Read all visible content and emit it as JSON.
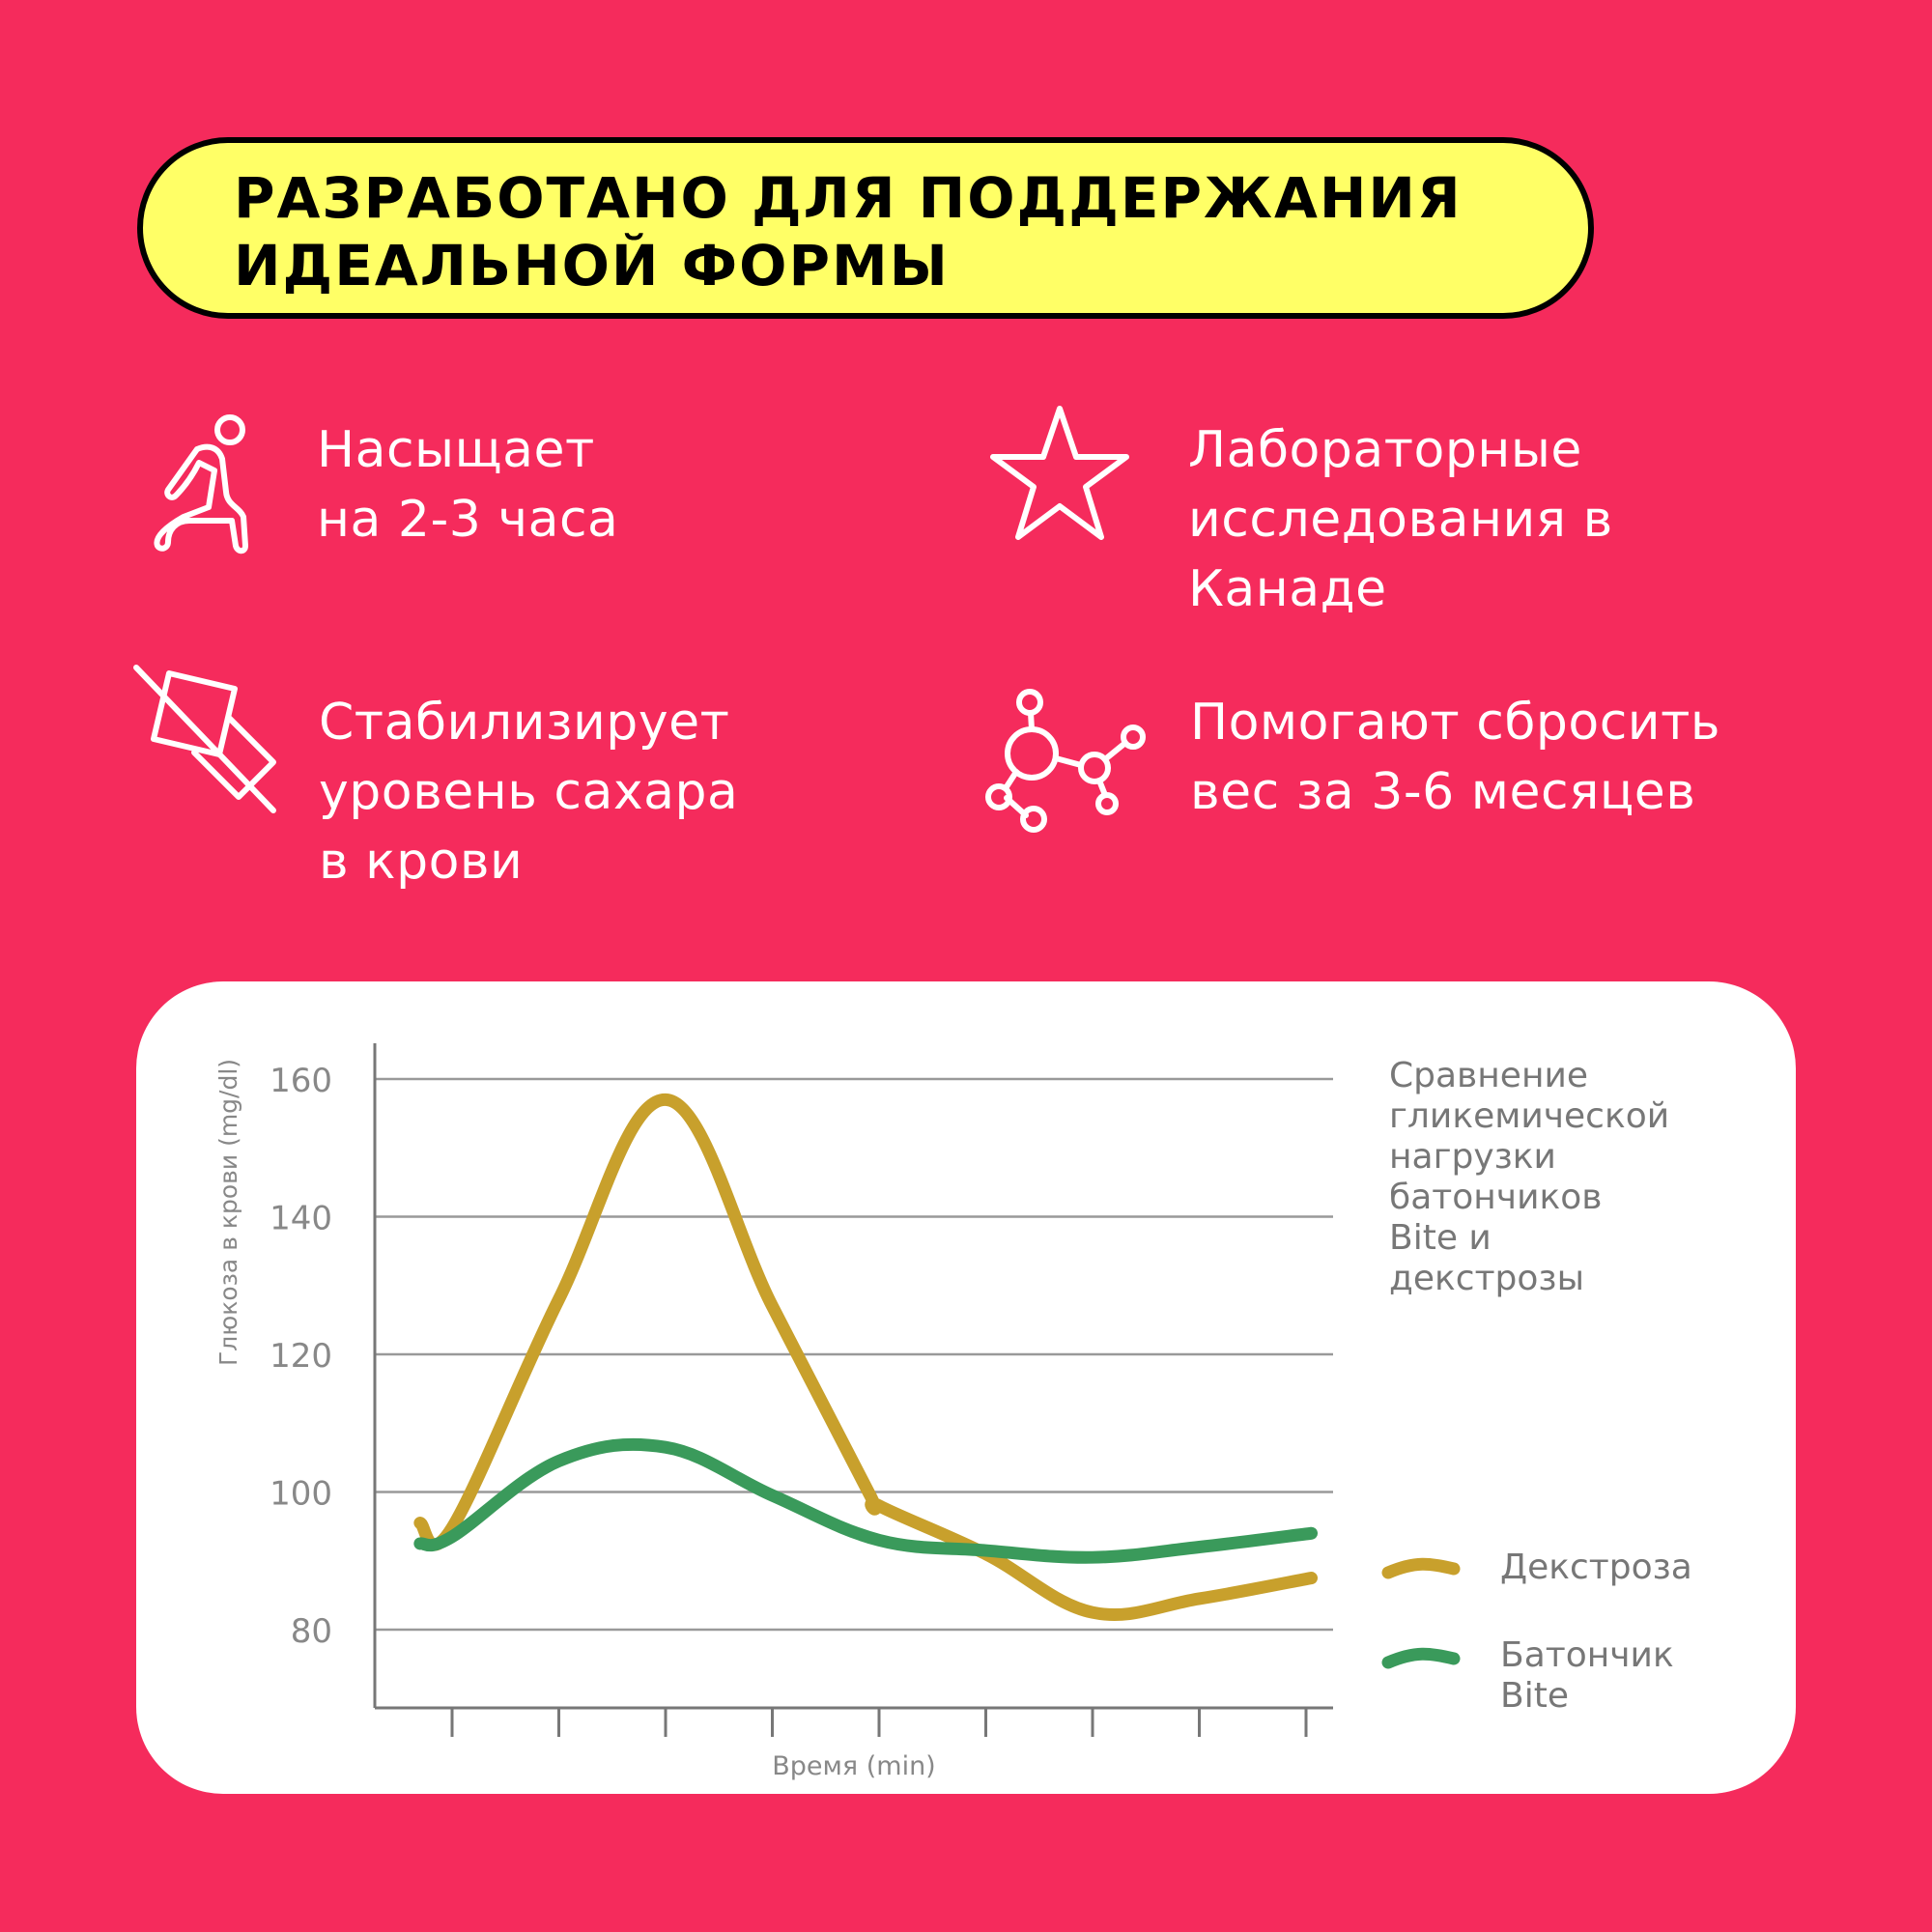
{
  "headline": {
    "line1": "РАЗРАБОТАНО ДЛЯ ПОДДЕРЖАНИЯ",
    "line2": "ИДЕАЛЬНОЙ ФОРМЫ"
  },
  "features": [
    {
      "icon": "stretching-person-icon",
      "lines": [
        "Насыщает",
        "на 2-3 часа"
      ]
    },
    {
      "icon": "star-icon",
      "lines": [
        "Лабораторные",
        "исследования в",
        "Канаде"
      ]
    },
    {
      "icon": "no-sugar-icon",
      "lines": [
        "Стабилизирует",
        "уровень сахара",
        "в крови"
      ]
    },
    {
      "icon": "molecule-icon",
      "lines": [
        "Помогают сбросить",
        "вес за 3-6 месяцев"
      ]
    }
  ],
  "colors": {
    "background": "#F52B5C",
    "headline_bg": "#FFFF66",
    "dextrose": "#C8A02C",
    "bite": "#3A9A5B"
  },
  "chart_note": [
    "Сравнение",
    "гликемической",
    "нагрузки",
    "батончиков",
    "Bite и",
    "декстрозы"
  ],
  "chart_data": {
    "type": "line",
    "xlabel": "Время (min)",
    "ylabel": "Глюкоза в крови (mg/dl)",
    "ylim": [
      68,
      166
    ],
    "yticks": [
      80,
      100,
      120,
      140,
      160
    ],
    "grid": true,
    "legend_position": "right",
    "series": [
      {
        "name": "Декстроза",
        "color": "#C8A02C",
        "x": [
          -0.3,
          0,
          1,
          2,
          3,
          3.9,
          4,
          5,
          6,
          7,
          8.05
        ],
        "y": [
          95.5,
          94.8,
          128,
          157,
          127,
          100,
          98,
          91,
          82.5,
          84.5,
          87.5
        ]
      },
      {
        "name": "Батончик Bite",
        "color": "#3A9A5B",
        "x": [
          -0.3,
          0,
          1,
          2,
          3,
          4,
          5,
          6,
          7,
          8.05
        ],
        "y": [
          92.5,
          93.5,
          104.5,
          106.5,
          99.5,
          93,
          91.5,
          90.5,
          92,
          94
        ]
      }
    ]
  }
}
